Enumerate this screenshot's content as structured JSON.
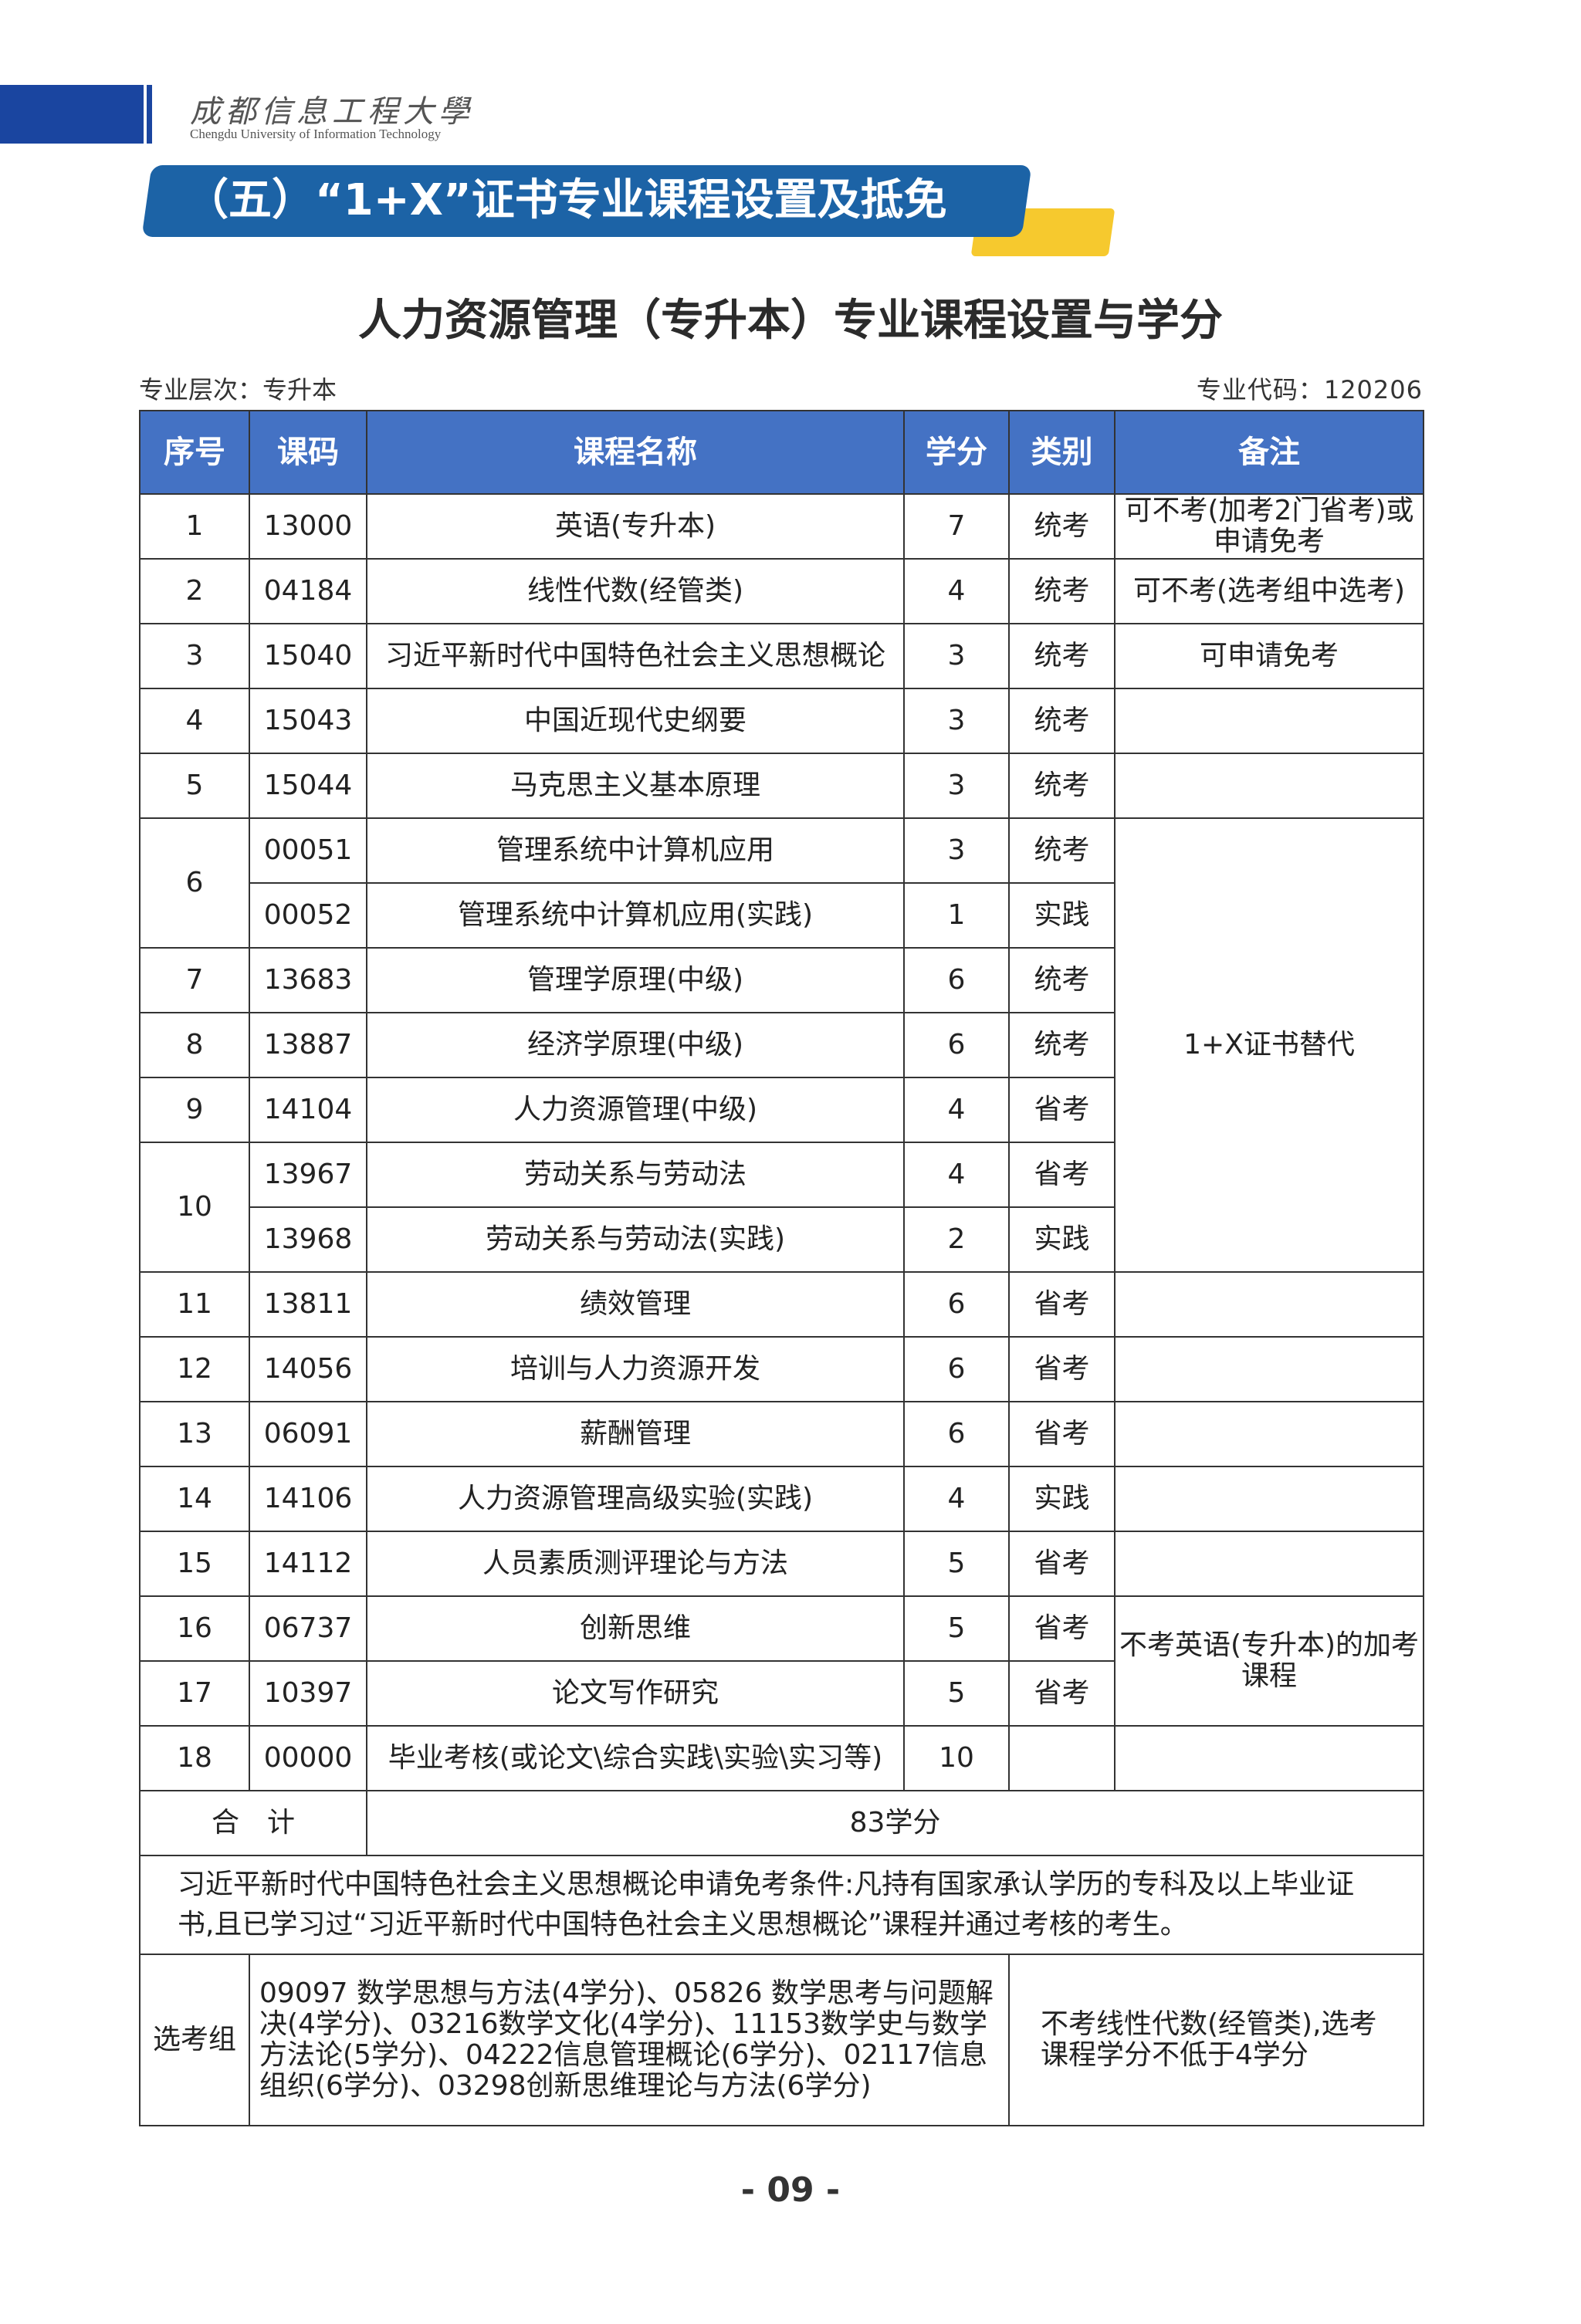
{
  "header": {
    "university_cn": "成都信息工程大學",
    "university_en": "Chengdu University of Information Technology",
    "section_title": "（五）“1+X”证书专业课程设置及抵免",
    "colors": {
      "band": "#1a45a0",
      "banner": "#1c63a6",
      "accent": "#f6c92e",
      "table_header": "#4472c4"
    }
  },
  "doc": {
    "title": "人力资源管理（专升本）专业课程设置与学分",
    "level": "专业层次：专升本",
    "code": "专业代码：120206"
  },
  "table": {
    "columns": [
      "序号",
      "课码",
      "课程名称",
      "学分",
      "类别",
      "备注"
    ],
    "rows": [
      {
        "no": "1",
        "code": "13000",
        "name": "英语(专升本)",
        "credit": "7",
        "type": "统考",
        "note": "可不考(加考2门省考)或申请免考"
      },
      {
        "no": "2",
        "code": "04184",
        "name": "线性代数(经管类)",
        "credit": "4",
        "type": "统考",
        "note": "可不考(选考组中选考)"
      },
      {
        "no": "3",
        "code": "15040",
        "name": "习近平新时代中国特色社会主义思想概论",
        "credit": "3",
        "type": "统考",
        "note": "可申请免考"
      },
      {
        "no": "4",
        "code": "15043",
        "name": "中国近现代史纲要",
        "credit": "3",
        "type": "统考",
        "note": ""
      },
      {
        "no": "5",
        "code": "15044",
        "name": "马克思主义基本原理",
        "credit": "3",
        "type": "统考",
        "note": ""
      },
      {
        "no": "6",
        "code": "00051",
        "name": "管理系统中计算机应用",
        "credit": "3",
        "type": "统考",
        "note": "1+X证书替代"
      },
      {
        "no": "",
        "code": "00052",
        "name": "管理系统中计算机应用(实践)",
        "credit": "1",
        "type": "实践"
      },
      {
        "no": "7",
        "code": "13683",
        "name": "管理学原理(中级)",
        "credit": "6",
        "type": "统考"
      },
      {
        "no": "8",
        "code": "13887",
        "name": "经济学原理(中级)",
        "credit": "6",
        "type": "统考"
      },
      {
        "no": "9",
        "code": "14104",
        "name": "人力资源管理(中级)",
        "credit": "4",
        "type": "省考"
      },
      {
        "no": "10",
        "code": "13967",
        "name": "劳动关系与劳动法",
        "credit": "4",
        "type": "省考"
      },
      {
        "no": "",
        "code": "13968",
        "name": "劳动关系与劳动法(实践)",
        "credit": "2",
        "type": "实践"
      },
      {
        "no": "11",
        "code": "13811",
        "name": "绩效管理",
        "credit": "6",
        "type": "省考",
        "note": ""
      },
      {
        "no": "12",
        "code": "14056",
        "name": "培训与人力资源开发",
        "credit": "6",
        "type": "省考",
        "note": ""
      },
      {
        "no": "13",
        "code": "06091",
        "name": "薪酬管理",
        "credit": "6",
        "type": "省考",
        "note": ""
      },
      {
        "no": "14",
        "code": "14106",
        "name": "人力资源管理高级实验(实践)",
        "credit": "4",
        "type": "实践",
        "note": ""
      },
      {
        "no": "15",
        "code": "14112",
        "name": "人员素质测评理论与方法",
        "credit": "5",
        "type": "省考",
        "note": ""
      },
      {
        "no": "16",
        "code": "06737",
        "name": "创新思维",
        "credit": "5",
        "type": "省考",
        "note": "不考英语(专升本)的加考课程"
      },
      {
        "no": "17",
        "code": "10397",
        "name": "论文写作研究",
        "credit": "5",
        "type": "省考"
      },
      {
        "no": "18",
        "code": "00000",
        "name": "毕业考核(或论文\\综合实践\\实验\\实习等)",
        "credit": "10",
        "type": "",
        "note": ""
      }
    ],
    "total_label": "合　计",
    "total_value": "83学分",
    "exemption_note": "习近平新时代中国特色社会主义思想概论申请免考条件:凡持有国家承认学历的专科及以上毕业证书,且已学习过“习近平新时代中国特色社会主义思想概论”课程并通过考核的考生。",
    "elective_label": "选考组",
    "elective_courses": "09097 数学思想与方法(4学分)、05826 数学思考与问题解决(4学分)、03216数学文化(4学分)、11153数学史与数学方法论(5学分)、04222信息管理概论(6学分)、02117信息组织(6学分)、03298创新思维理论与方法(6学分)",
    "elective_note": "不考线性代数(经管类),选考课程学分不低于4学分"
  },
  "page_number": "- 09 -"
}
